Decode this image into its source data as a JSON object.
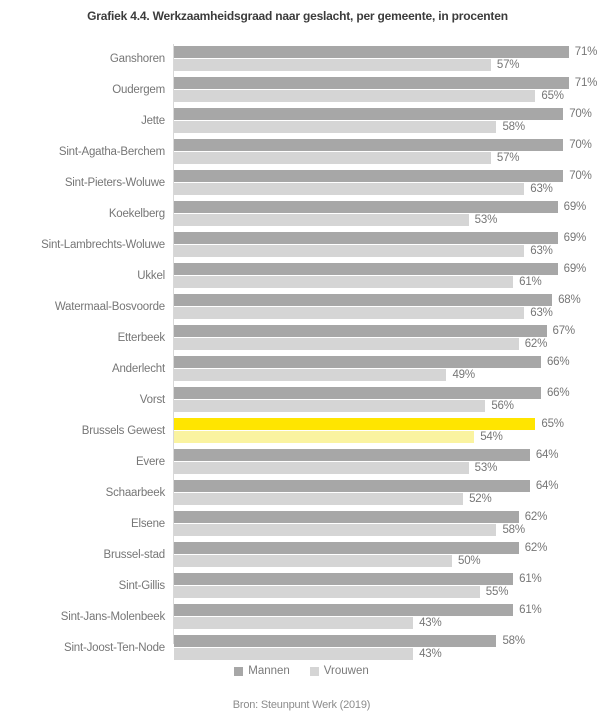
{
  "colors": {
    "mannen_bar": "#a7a7a7",
    "vrouwen_bar": "#d5d5d5",
    "highlight_mannen": "#ffe500",
    "highlight_vrouwen": "#faf3a0",
    "title_text": "#3c3c3c",
    "label_text": "#767676",
    "axis_line": "#d8d8d8"
  },
  "chart_data": {
    "type": "bar",
    "orientation": "horizontal",
    "title": "Grafiek 4.4. Werkzaamheidsgraad naar geslacht, per gemeente, in procenten",
    "source": "Bron: Steunpunt Werk (2019)",
    "categories": [
      "Ganshoren",
      "Oudergem",
      "Jette",
      "Sint-Agatha-Berchem",
      "Sint-Pieters-Woluwe",
      "Koekelberg",
      "Sint-Lambrechts-Woluwe",
      "Ukkel",
      "Watermaal-Bosvoorde",
      "Etterbeek",
      "Anderlecht",
      "Vorst",
      "Brussels Gewest",
      "Evere",
      "Schaarbeek",
      "Elsene",
      "Brussel-stad",
      "Sint-Gillis",
      "Sint-Jans-Molenbeek",
      "Sint-Joost-Ten-Node"
    ],
    "series": [
      {
        "name": "Mannen",
        "values": [
          71,
          71,
          70,
          70,
          70,
          69,
          69,
          69,
          68,
          67,
          66,
          66,
          65,
          64,
          64,
          62,
          62,
          61,
          61,
          58
        ]
      },
      {
        "name": "Vrouwen",
        "values": [
          57,
          65,
          58,
          57,
          63,
          53,
          63,
          61,
          63,
          62,
          49,
          56,
          54,
          53,
          52,
          58,
          50,
          55,
          43,
          43
        ]
      }
    ],
    "highlight_category": "Brussels Gewest",
    "value_suffix": "%",
    "xlim": [
      0,
      77
    ],
    "grid": false,
    "legend_position": "bottom"
  }
}
